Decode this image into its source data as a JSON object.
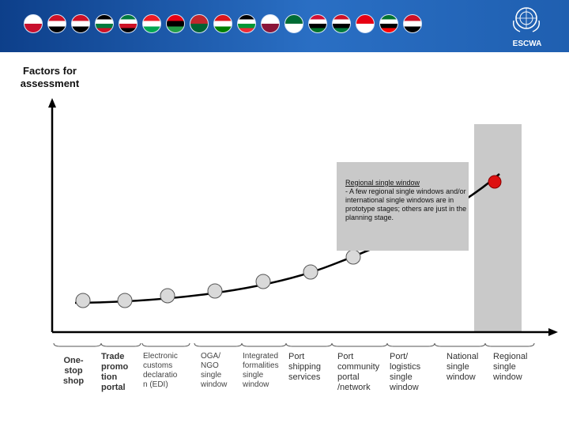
{
  "header": {
    "logo_text": "ESCWA",
    "flags": [
      {
        "name": "bahrain",
        "colors": [
          "#ffffff",
          "#c8102e"
        ]
      },
      {
        "name": "egypt",
        "colors": [
          "#ce1126",
          "#ffffff",
          "#000000"
        ]
      },
      {
        "name": "iraq",
        "colors": [
          "#ce1126",
          "#ffffff",
          "#000000"
        ]
      },
      {
        "name": "jordan",
        "colors": [
          "#000000",
          "#ffffff",
          "#007a3d",
          "#ce1126"
        ]
      },
      {
        "name": "kuwait",
        "colors": [
          "#007a3d",
          "#ffffff",
          "#ce1126",
          "#000000"
        ]
      },
      {
        "name": "lebanon",
        "colors": [
          "#ed1c24",
          "#ffffff",
          "#00a651"
        ]
      },
      {
        "name": "libya",
        "colors": [
          "#e70013",
          "#000000",
          "#239e46"
        ]
      },
      {
        "name": "morocco",
        "colors": [
          "#c1272d",
          "#006233"
        ]
      },
      {
        "name": "oman",
        "colors": [
          "#db161b",
          "#ffffff",
          "#008000"
        ]
      },
      {
        "name": "palestine",
        "colors": [
          "#000000",
          "#ffffff",
          "#009736",
          "#ee2a35"
        ]
      },
      {
        "name": "qatar",
        "colors": [
          "#ffffff",
          "#8a1538"
        ]
      },
      {
        "name": "saudi-arabia",
        "colors": [
          "#006c35",
          "#ffffff"
        ]
      },
      {
        "name": "sudan",
        "colors": [
          "#d21034",
          "#ffffff",
          "#000000",
          "#007229"
        ]
      },
      {
        "name": "syria",
        "colors": [
          "#ce1126",
          "#ffffff",
          "#000000",
          "#007a3d"
        ]
      },
      {
        "name": "tunisia",
        "colors": [
          "#e70013",
          "#ffffff"
        ]
      },
      {
        "name": "uae",
        "colors": [
          "#00732f",
          "#ffffff",
          "#000000",
          "#ff0000"
        ]
      },
      {
        "name": "yemen",
        "colors": [
          "#ce1126",
          "#ffffff",
          "#000000"
        ]
      }
    ]
  },
  "axis_title": "Factors for assessment",
  "callout": {
    "title": "Regional single window",
    "body": "- A few regional single windows and/or international single windows are in prototype stages; others are just in the planning stage."
  },
  "stages": [
    {
      "label": "One-stop shop"
    },
    {
      "label": "Trade promotion portal"
    },
    {
      "label": "Electronic customs declaration (EDI)"
    },
    {
      "label": "OGA/NGO single window"
    },
    {
      "label": "Integrated formalities single window"
    },
    {
      "label": "Port shipping services"
    },
    {
      "label": "Port community portal /network"
    },
    {
      "label": "Port/ logistics single window"
    },
    {
      "label": "National single window"
    },
    {
      "label": "Regional single window"
    }
  ],
  "label_lines": [
    [
      "One-",
      "stop",
      "shop"
    ],
    [
      "Trade",
      "promo",
      "tion",
      "portal"
    ],
    [
      "Electronic",
      "customs",
      "declaratio",
      "n (EDI)"
    ],
    [
      "OGA/",
      "NGO",
      "single",
      "window"
    ],
    [
      "Integrated",
      "formalities",
      "single",
      "window"
    ],
    [
      "Port",
      "shipping",
      "services"
    ],
    [
      "Port",
      "community",
      "portal",
      "/network"
    ],
    [
      "Port/",
      "logistics",
      "single",
      "window"
    ],
    [
      "National",
      "single",
      "window"
    ],
    [
      "Regional",
      "single",
      "window"
    ]
  ],
  "colors": {
    "point_fill": "#d9d9d9",
    "highlight_fill": "#dd1111",
    "highlight_band": "#c9c9c9",
    "callout_bg": "#c9c9c9",
    "axis": "#000000"
  }
}
